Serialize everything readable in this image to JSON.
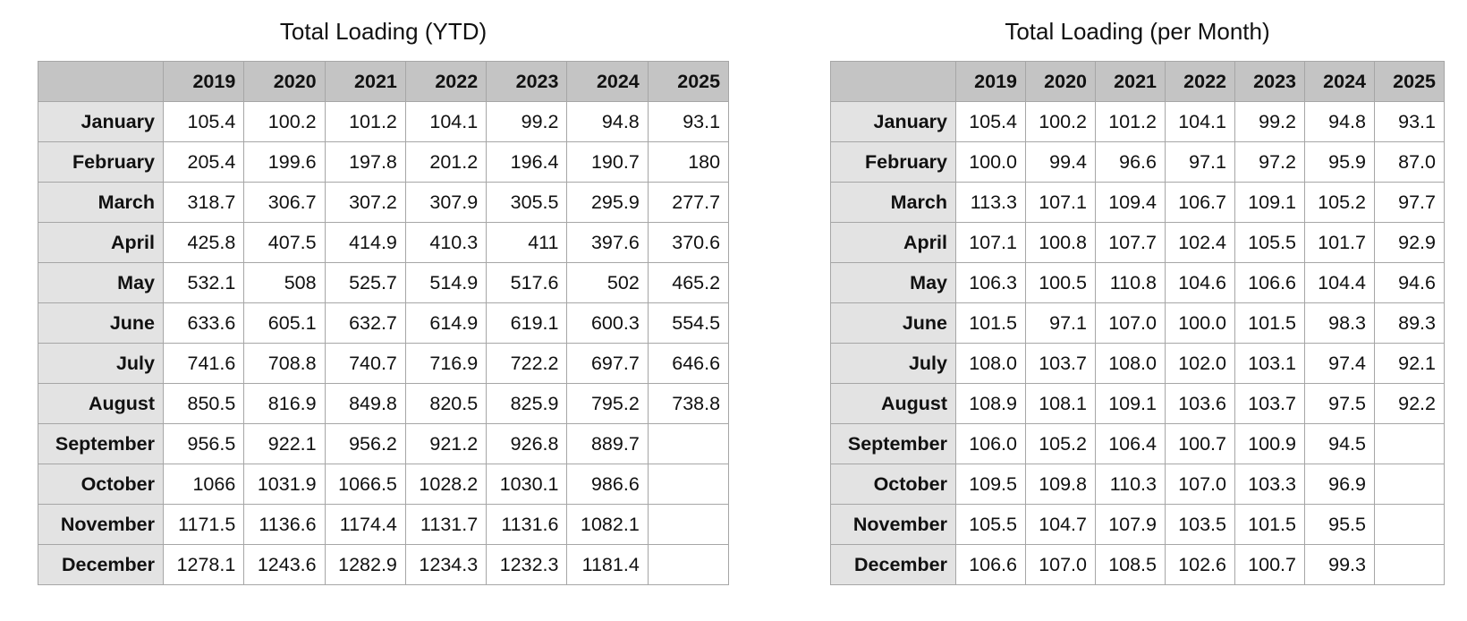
{
  "tables": [
    {
      "title": "Total Loading (YTD)",
      "years": [
        "2019",
        "2020",
        "2021",
        "2022",
        "2023",
        "2024",
        "2025"
      ],
      "rows": [
        {
          "month": "January",
          "values": [
            "105.4",
            "100.2",
            "101.2",
            "104.1",
            "99.2",
            "94.8",
            "93.1"
          ]
        },
        {
          "month": "February",
          "values": [
            "205.4",
            "199.6",
            "197.8",
            "201.2",
            "196.4",
            "190.7",
            "180"
          ]
        },
        {
          "month": "March",
          "values": [
            "318.7",
            "306.7",
            "307.2",
            "307.9",
            "305.5",
            "295.9",
            "277.7"
          ]
        },
        {
          "month": "April",
          "values": [
            "425.8",
            "407.5",
            "414.9",
            "410.3",
            "411",
            "397.6",
            "370.6"
          ]
        },
        {
          "month": "May",
          "values": [
            "532.1",
            "508",
            "525.7",
            "514.9",
            "517.6",
            "502",
            "465.2"
          ]
        },
        {
          "month": "June",
          "values": [
            "633.6",
            "605.1",
            "632.7",
            "614.9",
            "619.1",
            "600.3",
            "554.5"
          ]
        },
        {
          "month": "July",
          "values": [
            "741.6",
            "708.8",
            "740.7",
            "716.9",
            "722.2",
            "697.7",
            "646.6"
          ]
        },
        {
          "month": "August",
          "values": [
            "850.5",
            "816.9",
            "849.8",
            "820.5",
            "825.9",
            "795.2",
            "738.8"
          ]
        },
        {
          "month": "September",
          "values": [
            "956.5",
            "922.1",
            "956.2",
            "921.2",
            "926.8",
            "889.7",
            ""
          ]
        },
        {
          "month": "October",
          "values": [
            "1066",
            "1031.9",
            "1066.5",
            "1028.2",
            "1030.1",
            "986.6",
            ""
          ]
        },
        {
          "month": "November",
          "values": [
            "1171.5",
            "1136.6",
            "1174.4",
            "1131.7",
            "1131.6",
            "1082.1",
            ""
          ]
        },
        {
          "month": "December",
          "values": [
            "1278.1",
            "1243.6",
            "1282.9",
            "1234.3",
            "1232.3",
            "1181.4",
            ""
          ]
        }
      ]
    },
    {
      "title": "Total Loading (per Month)",
      "years": [
        "2019",
        "2020",
        "2021",
        "2022",
        "2023",
        "2024",
        "2025"
      ],
      "rows": [
        {
          "month": "January",
          "values": [
            "105.4",
            "100.2",
            "101.2",
            "104.1",
            "99.2",
            "94.8",
            "93.1"
          ]
        },
        {
          "month": "February",
          "values": [
            "100.0",
            "99.4",
            "96.6",
            "97.1",
            "97.2",
            "95.9",
            "87.0"
          ]
        },
        {
          "month": "March",
          "values": [
            "113.3",
            "107.1",
            "109.4",
            "106.7",
            "109.1",
            "105.2",
            "97.7"
          ]
        },
        {
          "month": "April",
          "values": [
            "107.1",
            "100.8",
            "107.7",
            "102.4",
            "105.5",
            "101.7",
            "92.9"
          ]
        },
        {
          "month": "May",
          "values": [
            "106.3",
            "100.5",
            "110.8",
            "104.6",
            "106.6",
            "104.4",
            "94.6"
          ]
        },
        {
          "month": "June",
          "values": [
            "101.5",
            "97.1",
            "107.0",
            "100.0",
            "101.5",
            "98.3",
            "89.3"
          ]
        },
        {
          "month": "July",
          "values": [
            "108.0",
            "103.7",
            "108.0",
            "102.0",
            "103.1",
            "97.4",
            "92.1"
          ]
        },
        {
          "month": "August",
          "values": [
            "108.9",
            "108.1",
            "109.1",
            "103.6",
            "103.7",
            "97.5",
            "92.2"
          ]
        },
        {
          "month": "September",
          "values": [
            "106.0",
            "105.2",
            "106.4",
            "100.7",
            "100.9",
            "94.5",
            ""
          ]
        },
        {
          "month": "October",
          "values": [
            "109.5",
            "109.8",
            "110.3",
            "107.0",
            "103.3",
            "96.9",
            ""
          ]
        },
        {
          "month": "November",
          "values": [
            "105.5",
            "104.7",
            "107.9",
            "103.5",
            "101.5",
            "95.5",
            ""
          ]
        },
        {
          "month": "December",
          "values": [
            "106.6",
            "107.0",
            "108.5",
            "102.6",
            "100.7",
            "99.3",
            ""
          ]
        }
      ]
    }
  ]
}
